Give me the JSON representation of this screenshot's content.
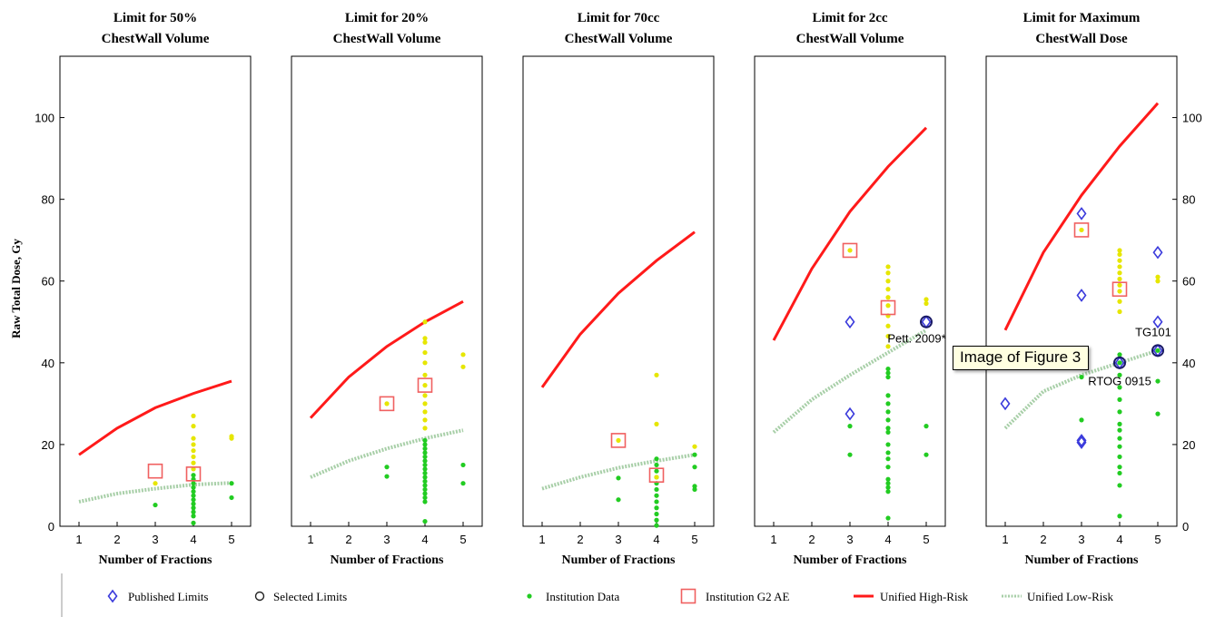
{
  "chart_data": {
    "type": "scatter",
    "ylabel": "Raw Total Dose, Gy",
    "xlabel": "Number of Fractions",
    "xlim": [
      0.5,
      5.5
    ],
    "ylim": [
      0,
      115
    ],
    "xticks": [
      1,
      2,
      3,
      4,
      5
    ],
    "yticks_left": [
      0,
      20,
      40,
      60,
      80,
      100
    ],
    "yticks_right": [
      0,
      20,
      40,
      60,
      80,
      100
    ],
    "grid": false,
    "colors": {
      "published": "#3b3bdc",
      "selected": "#1a1a66",
      "institution": "#22cc22",
      "institution_highlight": "#e6e600",
      "g2ae": "#f06060",
      "high_risk": "#ff1a1a",
      "low_risk": "#a8cfa8"
    },
    "legend": {
      "placement": "bottom",
      "items": [
        {
          "key": "published",
          "label": "Published Limits"
        },
        {
          "key": "selected",
          "label": "Selected Limits"
        },
        {
          "key": "institution",
          "label": "Institution Data"
        },
        {
          "key": "g2ae",
          "label": "Institution G2 AE"
        },
        {
          "key": "high",
          "label": "Unified High-Risk"
        },
        {
          "key": "low",
          "label": "Unified Low-Risk"
        }
      ]
    },
    "panels": [
      {
        "title1": "Limit for 50%",
        "title2": "ChestWall Volume",
        "high": [
          [
            1,
            17.5
          ],
          [
            2,
            24
          ],
          [
            3,
            29
          ],
          [
            4,
            32.5
          ],
          [
            5,
            35.5
          ]
        ],
        "low": [
          [
            1,
            6
          ],
          [
            2,
            8
          ],
          [
            3,
            9.2
          ],
          [
            4,
            10.2
          ],
          [
            5,
            10.6
          ]
        ],
        "inst_green": [
          [
            3,
            5.2
          ],
          [
            4,
            0.8
          ],
          [
            4,
            2.5
          ],
          [
            4,
            3.5
          ],
          [
            4,
            4.5
          ],
          [
            4,
            5.5
          ],
          [
            4,
            6.5
          ],
          [
            4,
            7.5
          ],
          [
            4,
            8.5
          ],
          [
            4,
            9.5
          ],
          [
            4,
            10.5
          ],
          [
            4,
            11.5
          ],
          [
            4,
            12.5
          ],
          [
            5,
            7
          ],
          [
            5,
            10.5
          ]
        ],
        "inst_yellow": [
          [
            3,
            10.5
          ],
          [
            4,
            14
          ],
          [
            4,
            15.5
          ],
          [
            4,
            17
          ],
          [
            4,
            18.5
          ],
          [
            4,
            20
          ],
          [
            4,
            21.5
          ],
          [
            4,
            24.5
          ],
          [
            4,
            27
          ],
          [
            5,
            21.5
          ],
          [
            5,
            22
          ]
        ],
        "g2ae": [
          [
            3,
            13.5
          ],
          [
            4,
            12.8
          ]
        ],
        "published": [],
        "selected": [],
        "annotations": []
      },
      {
        "title1": "Limit for 20%",
        "title2": "ChestWall Volume",
        "high": [
          [
            1,
            26.5
          ],
          [
            2,
            36.5
          ],
          [
            3,
            44
          ],
          [
            4,
            50
          ],
          [
            5,
            55
          ]
        ],
        "low": [
          [
            1,
            12
          ],
          [
            2,
            16
          ],
          [
            3,
            19
          ],
          [
            4,
            21.5
          ],
          [
            5,
            23.5
          ]
        ],
        "inst_green": [
          [
            3,
            12.2
          ],
          [
            3,
            14.5
          ],
          [
            4,
            1.2
          ],
          [
            4,
            6
          ],
          [
            4,
            7
          ],
          [
            4,
            8
          ],
          [
            4,
            9
          ],
          [
            4,
            10
          ],
          [
            4,
            11
          ],
          [
            4,
            12
          ],
          [
            4,
            13
          ],
          [
            4,
            14
          ],
          [
            4,
            15
          ],
          [
            4,
            16
          ],
          [
            4,
            17
          ],
          [
            4,
            18
          ],
          [
            4,
            19
          ],
          [
            4,
            20
          ],
          [
            4,
            21
          ],
          [
            5,
            10.5
          ],
          [
            5,
            15
          ]
        ],
        "inst_yellow": [
          [
            3,
            30
          ],
          [
            4,
            24
          ],
          [
            4,
            26
          ],
          [
            4,
            28
          ],
          [
            4,
            30
          ],
          [
            4,
            32
          ],
          [
            4,
            34.5
          ],
          [
            4,
            37
          ],
          [
            4,
            40
          ],
          [
            4,
            42.5
          ],
          [
            4,
            45
          ],
          [
            4,
            46
          ],
          [
            4,
            50
          ],
          [
            5,
            39
          ],
          [
            5,
            42
          ]
        ],
        "g2ae": [
          [
            3,
            30
          ],
          [
            4,
            34.5
          ]
        ],
        "published": [],
        "selected": [],
        "annotations": []
      },
      {
        "title1": "Limit for 70cc",
        "title2": "ChestWall Volume",
        "high": [
          [
            1,
            34
          ],
          [
            2,
            47
          ],
          [
            3,
            57
          ],
          [
            4,
            65
          ],
          [
            5,
            72
          ]
        ],
        "low": [
          [
            1,
            9.2
          ],
          [
            2,
            12
          ],
          [
            3,
            14.3
          ],
          [
            4,
            16
          ],
          [
            5,
            17.5
          ]
        ],
        "inst_green": [
          [
            3,
            6.5
          ],
          [
            3,
            11.8
          ],
          [
            4,
            0.2
          ],
          [
            4,
            1.5
          ],
          [
            4,
            3
          ],
          [
            4,
            4.5
          ],
          [
            4,
            6
          ],
          [
            4,
            7.5
          ],
          [
            4,
            9
          ],
          [
            4,
            10.5
          ],
          [
            4,
            12
          ],
          [
            4,
            13.5
          ],
          [
            4,
            15
          ],
          [
            4,
            16.5
          ],
          [
            5,
            9
          ],
          [
            5,
            9.8
          ],
          [
            5,
            14.5
          ],
          [
            5,
            17.5
          ]
        ],
        "inst_yellow": [
          [
            3,
            21
          ],
          [
            4,
            12
          ],
          [
            4,
            25
          ],
          [
            4,
            37
          ],
          [
            5,
            19.5
          ]
        ],
        "g2ae": [
          [
            3,
            21
          ],
          [
            4,
            12.5
          ]
        ],
        "published": [],
        "selected": [],
        "annotations": []
      },
      {
        "title1": "Limit for 2cc",
        "title2": "ChestWall Volume",
        "high": [
          [
            1,
            45.5
          ],
          [
            2,
            63
          ],
          [
            3,
            77
          ],
          [
            4,
            88
          ],
          [
            5,
            97.5
          ]
        ],
        "low": [
          [
            1,
            23
          ],
          [
            2,
            31
          ],
          [
            3,
            37
          ],
          [
            4,
            42.5
          ],
          [
            5,
            48
          ]
        ],
        "inst_green": [
          [
            3,
            17.5
          ],
          [
            3,
            24.5
          ],
          [
            4,
            2
          ],
          [
            4,
            8.5
          ],
          [
            4,
            9.5
          ],
          [
            4,
            10.5
          ],
          [
            4,
            11.5
          ],
          [
            4,
            14.5
          ],
          [
            4,
            16.5
          ],
          [
            4,
            18
          ],
          [
            4,
            20
          ],
          [
            4,
            23
          ],
          [
            4,
            24
          ],
          [
            4,
            26
          ],
          [
            4,
            28
          ],
          [
            4,
            30
          ],
          [
            4,
            32
          ],
          [
            4,
            36.5
          ],
          [
            4,
            37.5
          ],
          [
            4,
            38.5
          ],
          [
            5,
            17.5
          ],
          [
            5,
            24.5
          ]
        ],
        "inst_yellow": [
          [
            3,
            67.5
          ],
          [
            4,
            44
          ],
          [
            4,
            46.5
          ],
          [
            4,
            49
          ],
          [
            4,
            51.5
          ],
          [
            4,
            54
          ],
          [
            4,
            56
          ],
          [
            4,
            58
          ],
          [
            4,
            60
          ],
          [
            4,
            62
          ],
          [
            4,
            63.5
          ],
          [
            5,
            54.5
          ],
          [
            5,
            55.5
          ]
        ],
        "g2ae": [
          [
            3,
            67.5
          ],
          [
            4,
            53.5
          ]
        ],
        "published": [
          [
            3,
            50
          ],
          [
            3,
            27.5
          ],
          [
            5,
            50
          ]
        ],
        "selected": [
          [
            5,
            50
          ]
        ],
        "annotations": [
          {
            "text": "Pett. 2009*",
            "x": 4.75,
            "y": 45
          }
        ]
      },
      {
        "title1": "Limit for Maximum",
        "title2": "ChestWall Dose",
        "high": [
          [
            1,
            48
          ],
          [
            2,
            67
          ],
          [
            3,
            81
          ],
          [
            4,
            93
          ],
          [
            5,
            103.5
          ]
        ],
        "low": [
          [
            1,
            24
          ],
          [
            2,
            33
          ],
          [
            3,
            37
          ],
          [
            4,
            40
          ],
          [
            5,
            43
          ]
        ],
        "inst_green": [
          [
            3,
            26
          ],
          [
            3,
            36.5
          ],
          [
            4,
            2.5
          ],
          [
            4,
            10
          ],
          [
            4,
            13
          ],
          [
            4,
            14.5
          ],
          [
            4,
            17
          ],
          [
            4,
            19.5
          ],
          [
            4,
            21.5
          ],
          [
            4,
            23.5
          ],
          [
            4,
            25
          ],
          [
            4,
            28
          ],
          [
            4,
            31
          ],
          [
            4,
            34
          ],
          [
            4,
            37
          ],
          [
            4,
            40
          ],
          [
            4,
            42
          ],
          [
            5,
            27.5
          ],
          [
            5,
            35.5
          ],
          [
            5,
            43
          ]
        ],
        "inst_yellow": [
          [
            3,
            72.5
          ],
          [
            4,
            52.5
          ],
          [
            4,
            55
          ],
          [
            4,
            57.5
          ],
          [
            4,
            59
          ],
          [
            4,
            60.5
          ],
          [
            4,
            62
          ],
          [
            4,
            63.5
          ],
          [
            4,
            65
          ],
          [
            4,
            66.5
          ],
          [
            4,
            67.5
          ],
          [
            5,
            60
          ],
          [
            5,
            61
          ]
        ],
        "g2ae": [
          [
            3,
            72.5
          ],
          [
            4,
            58
          ]
        ],
        "published": [
          [
            1,
            30
          ],
          [
            3,
            76.5
          ],
          [
            3,
            56.5
          ],
          [
            3,
            21
          ],
          [
            3,
            20.5
          ],
          [
            4,
            40
          ],
          [
            5,
            67
          ],
          [
            5,
            50
          ],
          [
            5,
            43
          ]
        ],
        "selected": [
          [
            4,
            40
          ],
          [
            5,
            43
          ]
        ],
        "annotations": [
          {
            "text": "TG101",
            "x": 4.88,
            "y": 46.5
          },
          {
            "text": "RTOG 0915",
            "x": 4.0,
            "y": 34.5
          }
        ]
      }
    ]
  },
  "tooltip": "Image of Figure 3"
}
